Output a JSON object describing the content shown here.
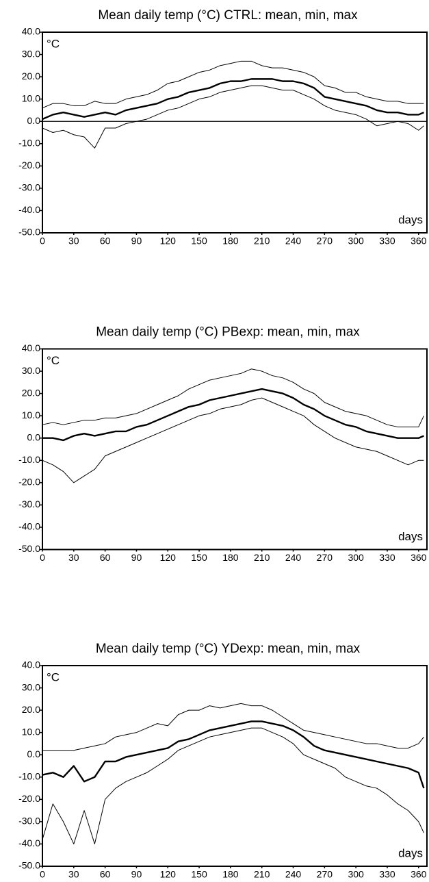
{
  "chart_data": [
    {
      "type": "line",
      "title": "Mean daily temp (°C) CTRL: mean, min, max",
      "unit_label": "°C",
      "xlabel": "days",
      "x": [
        0,
        10,
        20,
        30,
        40,
        50,
        60,
        70,
        80,
        90,
        100,
        110,
        120,
        130,
        140,
        150,
        160,
        170,
        180,
        190,
        200,
        210,
        220,
        230,
        240,
        250,
        260,
        270,
        280,
        290,
        300,
        310,
        320,
        330,
        340,
        350,
        360,
        365
      ],
      "series": [
        {
          "color": "#000000",
          "values": [
            1,
            3,
            4,
            3,
            2,
            3,
            4,
            3,
            5,
            6,
            7,
            8,
            10,
            11,
            13,
            14,
            15,
            17,
            18,
            18,
            19,
            19,
            19,
            18,
            18,
            17,
            15,
            11,
            10,
            9,
            8,
            7,
            5,
            4,
            4,
            3,
            3,
            4
          ]
        },
        {
          "color": "#000000",
          "values": [
            -3,
            -5,
            -4,
            -6,
            -7,
            -12,
            -3,
            -3,
            -1,
            0,
            1,
            3,
            5,
            6,
            8,
            10,
            11,
            13,
            14,
            15,
            16,
            16,
            15,
            14,
            14,
            12,
            10,
            7,
            5,
            4,
            3,
            1,
            -2,
            -1,
            0,
            -1,
            -4,
            -2
          ]
        },
        {
          "color": "#000000",
          "values": [
            6,
            8,
            8,
            7,
            7,
            9,
            8,
            8,
            10,
            11,
            12,
            14,
            17,
            18,
            20,
            22,
            23,
            25,
            26,
            27,
            27,
            25,
            24,
            24,
            23,
            22,
            20,
            16,
            15,
            13,
            13,
            11,
            10,
            9,
            9,
            8,
            8,
            8
          ]
        }
      ],
      "xlim": [
        0,
        368
      ],
      "xticks": [
        0,
        30,
        60,
        90,
        120,
        150,
        180,
        210,
        240,
        270,
        300,
        330,
        360
      ],
      "ylim": [
        -50,
        40
      ],
      "yticks": [
        {
          "value": -50,
          "label": "-50.0"
        },
        {
          "value": -40,
          "label": "-40.0"
        },
        {
          "value": -30,
          "label": "-30.0"
        },
        {
          "value": -20,
          "label": "-20.0"
        },
        {
          "value": -10,
          "label": "-10.0"
        },
        {
          "value": 0,
          "label": "0.0"
        },
        {
          "value": 10,
          "label": "10.0"
        },
        {
          "value": 20,
          "label": "20.0"
        },
        {
          "value": 30,
          "label": "30.0"
        },
        {
          "value": 40,
          "label": "40.0"
        }
      ],
      "zero_line": true
    },
    {
      "type": "line",
      "title": "Mean daily temp (°C) PBexp: mean, min, max",
      "unit_label": "°C",
      "xlabel": "days",
      "x": [
        0,
        10,
        20,
        30,
        40,
        50,
        60,
        70,
        80,
        90,
        100,
        110,
        120,
        130,
        140,
        150,
        160,
        170,
        180,
        190,
        200,
        210,
        220,
        230,
        240,
        250,
        260,
        270,
        280,
        290,
        300,
        310,
        320,
        330,
        340,
        350,
        360,
        365
      ],
      "series": [
        {
          "color": "#000000",
          "values": [
            0,
            0,
            -1,
            1,
            2,
            1,
            2,
            3,
            3,
            5,
            6,
            8,
            10,
            12,
            14,
            15,
            17,
            18,
            19,
            20,
            21,
            22,
            21,
            20,
            18,
            15,
            13,
            10,
            8,
            6,
            5,
            3,
            2,
            1,
            0,
            0,
            0,
            1
          ]
        },
        {
          "color": "#000000",
          "values": [
            -10,
            -12,
            -15,
            -20,
            -17,
            -14,
            -8,
            -6,
            -4,
            -2,
            0,
            2,
            4,
            6,
            8,
            10,
            11,
            13,
            14,
            15,
            17,
            18,
            16,
            14,
            12,
            10,
            6,
            3,
            0,
            -2,
            -4,
            -5,
            -6,
            -8,
            -10,
            -12,
            -10,
            -10
          ]
        },
        {
          "color": "#000000",
          "values": [
            6,
            7,
            6,
            7,
            8,
            8,
            9,
            9,
            10,
            11,
            13,
            15,
            17,
            19,
            22,
            24,
            26,
            27,
            28,
            29,
            31,
            30,
            28,
            27,
            25,
            22,
            20,
            16,
            14,
            12,
            11,
            10,
            8,
            6,
            5,
            5,
            5,
            10
          ]
        }
      ],
      "xlim": [
        0,
        368
      ],
      "xticks": [
        0,
        30,
        60,
        90,
        120,
        150,
        180,
        210,
        240,
        270,
        300,
        330,
        360
      ],
      "ylim": [
        -50,
        40
      ],
      "yticks": [
        {
          "value": -50,
          "label": "-50.0"
        },
        {
          "value": -40,
          "label": "-40.0"
        },
        {
          "value": -30,
          "label": "-30.0"
        },
        {
          "value": -20,
          "label": "-20.0"
        },
        {
          "value": -10,
          "label": "-10.0"
        },
        {
          "value": 0,
          "label": "0.0"
        },
        {
          "value": 10,
          "label": "10.0"
        },
        {
          "value": 20,
          "label": "20.0"
        },
        {
          "value": 30,
          "label": "30.0"
        },
        {
          "value": 40,
          "label": "40.0"
        }
      ],
      "zero_line": false
    },
    {
      "type": "line",
      "title": "Mean daily temp (°C) YDexp: mean, min, max",
      "unit_label": "°C",
      "xlabel": "days",
      "x": [
        0,
        10,
        20,
        30,
        40,
        50,
        60,
        70,
        80,
        90,
        100,
        110,
        120,
        130,
        140,
        150,
        160,
        170,
        180,
        190,
        200,
        210,
        220,
        230,
        240,
        250,
        260,
        270,
        280,
        290,
        300,
        310,
        320,
        330,
        340,
        350,
        360,
        365
      ],
      "series": [
        {
          "color": "#000000",
          "values": [
            -9,
            -8,
            -10,
            -5,
            -12,
            -10,
            -3,
            -3,
            -1,
            0,
            1,
            2,
            3,
            6,
            7,
            9,
            11,
            12,
            13,
            14,
            15,
            15,
            14,
            13,
            11,
            8,
            4,
            2,
            1,
            0,
            -1,
            -2,
            -3,
            -4,
            -5,
            -6,
            -8,
            -15
          ]
        },
        {
          "color": "#000000",
          "values": [
            -38,
            -22,
            -30,
            -40,
            -25,
            -40,
            -20,
            -15,
            -12,
            -10,
            -8,
            -5,
            -2,
            2,
            4,
            6,
            8,
            9,
            10,
            11,
            12,
            12,
            10,
            8,
            5,
            0,
            -2,
            -4,
            -6,
            -10,
            -12,
            -14,
            -15,
            -18,
            -22,
            -25,
            -30,
            -35
          ]
        },
        {
          "color": "#000000",
          "values": [
            2,
            2,
            2,
            2,
            3,
            4,
            5,
            8,
            9,
            10,
            12,
            14,
            13,
            18,
            20,
            20,
            22,
            21,
            22,
            23,
            22,
            22,
            20,
            17,
            14,
            11,
            10,
            9,
            8,
            7,
            6,
            5,
            5,
            4,
            3,
            3,
            5,
            8
          ]
        }
      ],
      "xlim": [
        0,
        368
      ],
      "xticks": [
        0,
        30,
        60,
        90,
        120,
        150,
        180,
        210,
        240,
        270,
        300,
        330,
        360
      ],
      "ylim": [
        -50,
        40
      ],
      "yticks": [
        {
          "value": -50,
          "label": "-50.0"
        },
        {
          "value": -40,
          "label": "-40.0"
        },
        {
          "value": -30,
          "label": "-30.0"
        },
        {
          "value": -20,
          "label": "-20.0"
        },
        {
          "value": -10,
          "label": "-10.0"
        },
        {
          "value": 0,
          "label": "0.0"
        },
        {
          "value": 10,
          "label": "10.0"
        },
        {
          "value": 20,
          "label": "20.0"
        },
        {
          "value": 30,
          "label": "30.0"
        },
        {
          "value": 40,
          "label": "40.0"
        }
      ],
      "zero_line": false
    }
  ]
}
